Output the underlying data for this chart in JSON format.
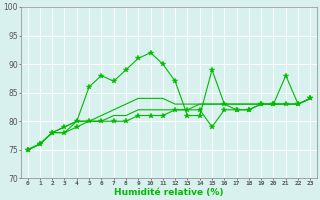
{
  "xlabel": "Humidité relative (%)",
  "xlim": [
    -0.5,
    23.5
  ],
  "ylim": [
    70,
    100
  ],
  "yticks": [
    70,
    75,
    80,
    85,
    90,
    95,
    100
  ],
  "xticks": [
    0,
    1,
    2,
    3,
    4,
    5,
    6,
    7,
    8,
    9,
    10,
    11,
    12,
    13,
    14,
    15,
    16,
    17,
    18,
    19,
    20,
    21,
    22,
    23
  ],
  "background_color": "#d8f0ee",
  "grid_color": "#b8dcd8",
  "line_color": "#00bb00",
  "lines": [
    [
      75,
      76,
      78,
      79,
      80,
      86,
      88,
      87,
      89,
      91,
      92,
      90,
      87,
      81,
      81,
      89,
      83,
      82,
      82,
      83,
      83,
      88,
      83,
      84
    ],
    [
      75,
      76,
      78,
      78,
      80,
      80,
      80,
      81,
      81,
      82,
      82,
      82,
      82,
      82,
      83,
      83,
      83,
      83,
      83,
      83,
      83,
      83,
      83,
      84
    ],
    [
      75,
      76,
      78,
      79,
      80,
      80,
      81,
      82,
      83,
      84,
      84,
      84,
      83,
      83,
      83,
      83,
      83,
      83,
      83,
      83,
      83,
      83,
      83,
      84
    ],
    [
      75,
      76,
      78,
      78,
      79,
      80,
      80,
      80,
      80,
      81,
      81,
      81,
      82,
      82,
      82,
      79,
      82,
      82,
      82,
      83,
      83,
      83,
      83,
      84
    ]
  ],
  "markers": [
    true,
    false,
    false,
    true
  ],
  "marker_style": "*",
  "figsize": [
    3.2,
    2.0
  ],
  "dpi": 100
}
